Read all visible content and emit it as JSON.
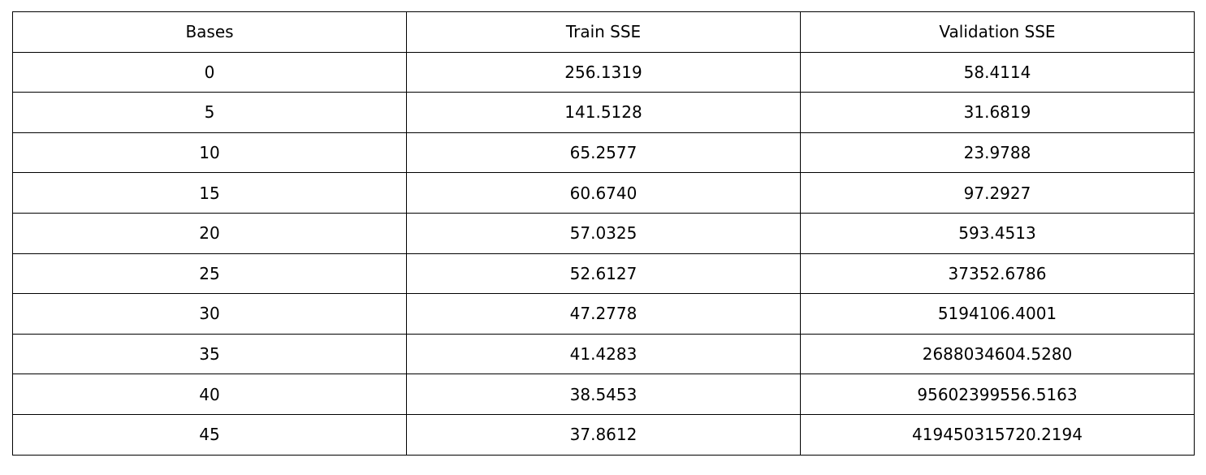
{
  "chart_data": {
    "type": "table",
    "columns": [
      "Bases",
      "Train SSE",
      "Validation SSE"
    ],
    "rows": [
      [
        "0",
        "256.1319",
        "58.4114"
      ],
      [
        "5",
        "141.5128",
        "31.6819"
      ],
      [
        "10",
        "65.2577",
        "23.9788"
      ],
      [
        "15",
        "60.6740",
        "97.2927"
      ],
      [
        "20",
        "57.0325",
        "593.4513"
      ],
      [
        "25",
        "52.6127",
        "37352.6786"
      ],
      [
        "30",
        "47.2778",
        "5194106.4001"
      ],
      [
        "35",
        "41.4283",
        "2688034604.5280"
      ],
      [
        "40",
        "38.5453",
        "95602399556.5163"
      ],
      [
        "45",
        "37.8612",
        "419450315720.2194"
      ]
    ]
  }
}
